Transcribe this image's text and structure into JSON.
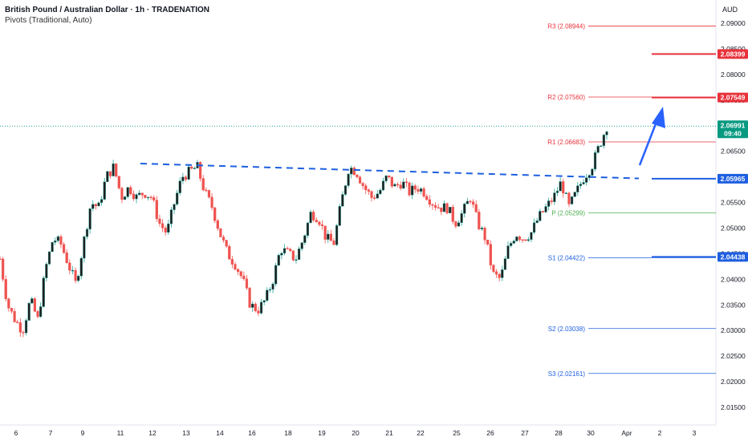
{
  "header": {
    "title": "British Pound / Australian Dollar · 1h · TRADENATION",
    "indicator": "Pivots (Traditional, Auto)"
  },
  "currency": "AUD",
  "colors": {
    "up": "#26a69a",
    "down": "#ef5350",
    "candle_up_body": "#1f1f1f",
    "resistance": "#e8323b",
    "support": "#1e5fe0",
    "pivot": "#4caf50",
    "price_tag": "#089981",
    "arrow": "#2962ff"
  },
  "chart_data": {
    "type": "candlestick",
    "ylim": [
      2.01,
      2.092
    ],
    "y_ticks": [
      "2.09000",
      "2.08500",
      "2.08000",
      "2.07500",
      "2.07000",
      "2.06500",
      "2.06000",
      "2.05500",
      "2.05000",
      "2.04500",
      "2.04000",
      "2.03500",
      "2.03000",
      "2.02500",
      "2.02000",
      "2.01500"
    ],
    "x_ticks": [
      "6",
      "7",
      "9",
      "11",
      "12",
      "13",
      "14",
      "16",
      "18",
      "19",
      "20",
      "21",
      "22",
      "25",
      "26",
      "27",
      "28",
      "30",
      "Apr",
      "2",
      "3"
    ],
    "close_path": [
      2.044,
      2.035,
      2.032,
      2.03,
      2.036,
      2.032,
      2.042,
      2.048,
      2.047,
      2.043,
      2.039,
      2.047,
      2.055,
      2.054,
      2.06,
      2.062,
      2.056,
      2.058,
      2.056,
      2.057,
      2.056,
      2.051,
      2.049,
      2.055,
      2.06,
      2.061,
      2.062,
      2.057,
      2.054,
      2.049,
      2.045,
      2.043,
      2.04,
      2.035,
      2.034,
      2.036,
      2.04,
      2.046,
      2.045,
      2.044,
      2.048,
      2.053,
      2.052,
      2.048,
      2.047,
      2.055,
      2.062,
      2.061,
      2.058,
      2.056,
      2.057,
      2.06,
      2.058,
      2.059,
      2.057,
      2.058,
      2.057,
      2.055,
      2.054,
      2.054,
      2.051,
      2.053,
      2.056,
      2.051,
      2.048,
      2.041,
      2.04,
      2.046,
      2.049,
      2.048,
      2.049,
      2.052,
      2.054,
      2.056,
      2.059,
      2.054,
      2.057,
      2.06,
      2.062,
      2.066,
      2.0699
    ],
    "levels": [
      {
        "label": "R3 (2.08944)",
        "value": 2.08944,
        "kind": "resistance"
      },
      {
        "label": "R2 (2.07560)",
        "value": 2.0756,
        "kind": "resistance"
      },
      {
        "label": "R1 (2.06683)",
        "value": 2.06683,
        "kind": "resistance"
      },
      {
        "label": "P (2.05299)",
        "value": 2.05299,
        "kind": "pivot"
      },
      {
        "label": "S1 (2.04422)",
        "value": 2.04422,
        "kind": "support"
      },
      {
        "label": "S2 (2.03038)",
        "value": 2.03038,
        "kind": "support"
      },
      {
        "label": "S3 (2.02161)",
        "value": 2.02161,
        "kind": "support"
      }
    ],
    "price_tags": [
      {
        "value": 2.08399,
        "text": "2.08399",
        "kind": "resistance"
      },
      {
        "value": 2.07549,
        "text": "2.07549",
        "kind": "resistance"
      },
      {
        "value": 2.06991,
        "text": "2.06991",
        "sub": "09:40",
        "kind": "price"
      },
      {
        "value": 2.05965,
        "text": "2.05965",
        "kind": "support"
      },
      {
        "value": 2.04438,
        "text": "2.04438",
        "kind": "support"
      }
    ],
    "trendline": {
      "from": 2.0626,
      "to": 2.0597
    },
    "last_price": 2.06991
  }
}
